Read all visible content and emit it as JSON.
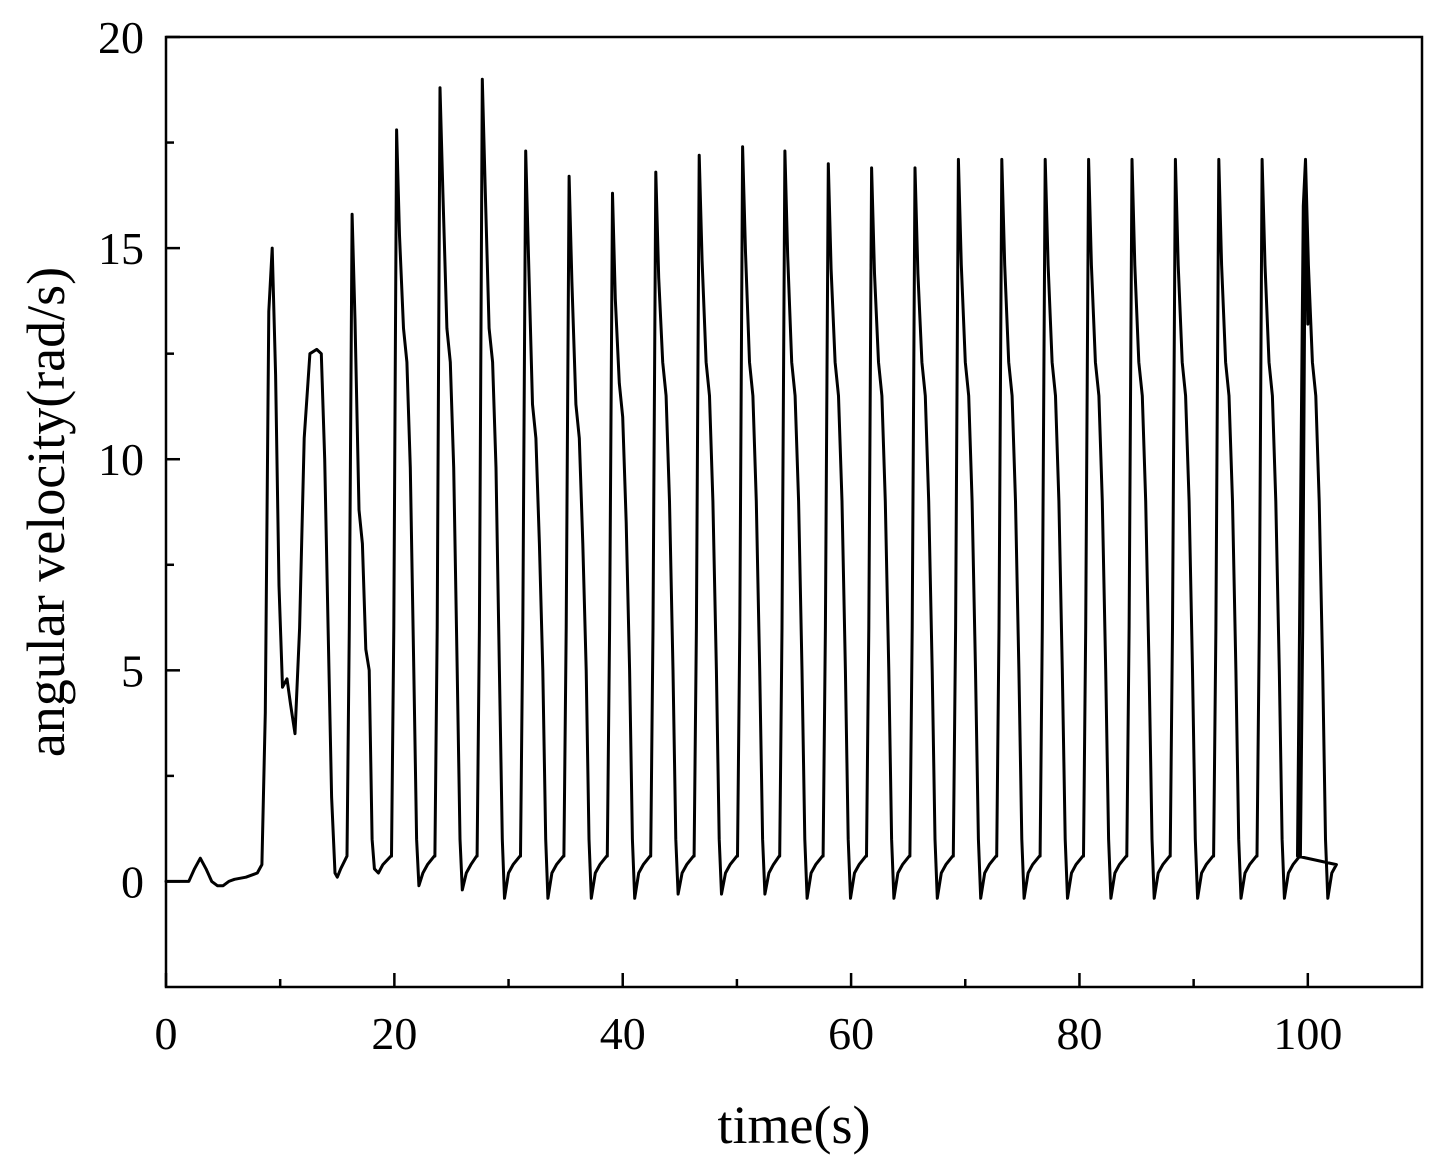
{
  "chart_data": {
    "type": "line",
    "title": "",
    "xlabel": "time(s)",
    "ylabel": "angular velocity(rad/s)",
    "xlim": [
      0,
      110
    ],
    "ylim": [
      -2.5,
      20
    ],
    "x_ticks": [
      0,
      20,
      40,
      60,
      80,
      100
    ],
    "y_ticks": [
      0,
      5,
      10,
      15,
      20
    ],
    "x_minor_ticks": [
      10,
      30,
      50,
      70,
      90
    ],
    "y_minor_ticks": [
      2.5,
      7.5,
      12.5,
      17.5
    ],
    "grid": false,
    "line_color": "#000000",
    "series": [
      {
        "name": "",
        "x": [
          0,
          2.0,
          2.5,
          3.0,
          3.5,
          4.0,
          4.5,
          5.0,
          5.5,
          6.0,
          7.0,
          8.0,
          8.4,
          8.7,
          9.0,
          9.3,
          9.6,
          9.9,
          10.2,
          10.6,
          10.9,
          11.3,
          11.7,
          12.1,
          12.6,
          13.2,
          13.6,
          13.9,
          14.2,
          14.5,
          14.8,
          15.0,
          15.3
        ],
        "y": [
          0.0,
          0.0,
          0.3,
          0.55,
          0.3,
          0.0,
          -0.1,
          -0.1,
          0.0,
          0.05,
          0.1,
          0.2,
          0.4,
          4.0,
          13.5,
          15.0,
          12.0,
          7.0,
          4.6,
          4.8,
          4.2,
          3.5,
          6.0,
          10.5,
          12.5,
          12.6,
          12.5,
          10.0,
          6.0,
          2.0,
          0.2,
          0.1,
          0.3
        ],
        "peaks": [
          {
            "t": 16.3,
            "peak": 15.8,
            "min": 0.3,
            "shoulder": 8.5
          },
          {
            "t": 20.2,
            "peak": 17.8,
            "min": -0.1,
            "shoulder": 12.8
          },
          {
            "t": 24.0,
            "peak": 18.8,
            "min": -0.2,
            "shoulder": 12.8
          },
          {
            "t": 27.7,
            "peak": 19.0,
            "min": -0.4,
            "shoulder": 12.8
          },
          {
            "t": 31.5,
            "peak": 17.3,
            "min": -0.4,
            "shoulder": 11.0
          },
          {
            "t": 35.3,
            "peak": 16.7,
            "min": -0.4,
            "shoulder": 11.0
          },
          {
            "t": 39.1,
            "peak": 16.3,
            "min": -0.4,
            "shoulder": 11.5
          },
          {
            "t": 42.9,
            "peak": 16.8,
            "min": -0.3,
            "shoulder": 12.0
          },
          {
            "t": 46.7,
            "peak": 17.2,
            "min": -0.3,
            "shoulder": 12.0
          },
          {
            "t": 50.5,
            "peak": 17.4,
            "min": -0.3,
            "shoulder": 12.0
          },
          {
            "t": 54.2,
            "peak": 17.3,
            "min": -0.4,
            "shoulder": 12.0
          },
          {
            "t": 58.0,
            "peak": 17.0,
            "min": -0.4,
            "shoulder": 12.0
          },
          {
            "t": 61.8,
            "peak": 16.9,
            "min": -0.4,
            "shoulder": 12.0
          },
          {
            "t": 65.6,
            "peak": 16.9,
            "min": -0.4,
            "shoulder": 12.0
          },
          {
            "t": 69.4,
            "peak": 17.1,
            "min": -0.4,
            "shoulder": 12.0
          },
          {
            "t": 73.2,
            "peak": 17.1,
            "min": -0.4,
            "shoulder": 12.0
          },
          {
            "t": 77.0,
            "peak": 17.1,
            "min": -0.4,
            "shoulder": 12.0
          },
          {
            "t": 80.8,
            "peak": 17.1,
            "min": -0.4,
            "shoulder": 12.0
          },
          {
            "t": 84.6,
            "peak": 17.1,
            "min": -0.4,
            "shoulder": 12.0
          },
          {
            "t": 88.4,
            "peak": 17.1,
            "min": -0.4,
            "shoulder": 12.0
          },
          {
            "t": 92.2,
            "peak": 17.1,
            "min": -0.4,
            "shoulder": 12.0
          },
          {
            "t": 96.0,
            "peak": 17.1,
            "min": -0.4,
            "shoulder": 12.0
          },
          {
            "t": 99.8,
            "peak": 17.1,
            "min": -0.4,
            "shoulder": 12.0
          }
        ],
        "end": {
          "x": 100.0,
          "y": 13.2
        }
      }
    ]
  }
}
